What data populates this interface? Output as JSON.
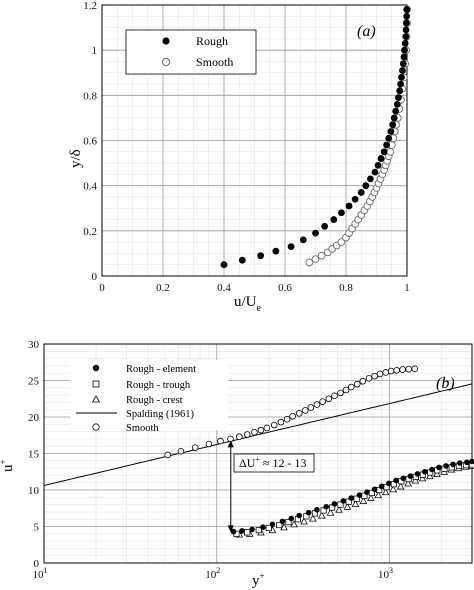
{
  "chart_data": [
    {
      "type": "scatter",
      "panel_label": "(a)",
      "xlabel_main": "u/U",
      "xlabel_sub": "e",
      "ylabel": "y/δ",
      "xlim": [
        0,
        1
      ],
      "ylim": [
        0,
        1.2
      ],
      "x_ticks": [
        "0",
        "0.2",
        "0.4",
        "0.6",
        "0.8",
        "1"
      ],
      "y_ticks": [
        "0",
        "0.2",
        "0.4",
        "0.6",
        "0.8",
        "1",
        "1.2"
      ],
      "grid": true,
      "legend_position": "top-left",
      "series": [
        {
          "name": "Rough",
          "marker": "filled-circle",
          "points": [
            [
              0.4,
              0.05
            ],
            [
              0.46,
              0.07
            ],
            [
              0.52,
              0.09
            ],
            [
              0.57,
              0.11
            ],
            [
              0.62,
              0.13
            ],
            [
              0.66,
              0.16
            ],
            [
              0.7,
              0.19
            ],
            [
              0.73,
              0.22
            ],
            [
              0.76,
              0.25
            ],
            [
              0.785,
              0.28
            ],
            [
              0.81,
              0.31
            ],
            [
              0.83,
              0.34
            ],
            [
              0.85,
              0.37
            ],
            [
              0.865,
              0.4
            ],
            [
              0.88,
              0.43
            ],
            [
              0.895,
              0.46
            ],
            [
              0.905,
              0.49
            ],
            [
              0.915,
              0.52
            ],
            [
              0.925,
              0.55
            ],
            [
              0.933,
              0.58
            ],
            [
              0.94,
              0.61
            ],
            [
              0.947,
              0.64
            ],
            [
              0.953,
              0.67
            ],
            [
              0.958,
              0.7
            ],
            [
              0.963,
              0.73
            ],
            [
              0.968,
              0.76
            ],
            [
              0.972,
              0.79
            ],
            [
              0.976,
              0.82
            ],
            [
              0.979,
              0.85
            ],
            [
              0.982,
              0.88
            ],
            [
              0.985,
              0.91
            ],
            [
              0.988,
              0.94
            ],
            [
              0.99,
              0.97
            ],
            [
              0.992,
              1.0
            ],
            [
              0.994,
              1.03
            ],
            [
              0.996,
              1.06
            ],
            [
              0.997,
              1.09
            ],
            [
              0.998,
              1.12
            ],
            [
              0.999,
              1.15
            ],
            [
              1.0,
              1.18
            ]
          ]
        },
        {
          "name": "Smooth",
          "marker": "open-circle",
          "points": [
            [
              0.68,
              0.06
            ],
            [
              0.7,
              0.075
            ],
            [
              0.72,
              0.09
            ],
            [
              0.74,
              0.105
            ],
            [
              0.755,
              0.12
            ],
            [
              0.77,
              0.135
            ],
            [
              0.785,
              0.15
            ],
            [
              0.8,
              0.17
            ],
            [
              0.81,
              0.19
            ],
            [
              0.82,
              0.21
            ],
            [
              0.83,
              0.23
            ],
            [
              0.84,
              0.25
            ],
            [
              0.85,
              0.27
            ],
            [
              0.86,
              0.29
            ],
            [
              0.87,
              0.31
            ],
            [
              0.878,
              0.33
            ],
            [
              0.886,
              0.35
            ],
            [
              0.893,
              0.37
            ],
            [
              0.9,
              0.39
            ],
            [
              0.907,
              0.41
            ],
            [
              0.913,
              0.43
            ],
            [
              0.919,
              0.45
            ],
            [
              0.925,
              0.47
            ],
            [
              0.93,
              0.49
            ],
            [
              0.935,
              0.51
            ],
            [
              0.94,
              0.53
            ],
            [
              0.945,
              0.55
            ],
            [
              0.95,
              0.58
            ],
            [
              0.955,
              0.61
            ],
            [
              0.96,
              0.64
            ],
            [
              0.965,
              0.67
            ],
            [
              0.97,
              0.7
            ],
            [
              0.975,
              0.74
            ],
            [
              0.98,
              0.78
            ],
            [
              0.985,
              0.83
            ],
            [
              0.99,
              0.88
            ],
            [
              0.994,
              0.94
            ],
            [
              0.997,
              1.0
            ],
            [
              0.999,
              1.06
            ],
            [
              1.0,
              1.12
            ],
            [
              1.0,
              1.18
            ]
          ]
        }
      ]
    },
    {
      "type": "scatter",
      "panel_label": "(b)",
      "xlabel_main": "y",
      "xlabel_sup": "+",
      "ylabel_main": "u",
      "ylabel_sup": "+",
      "xscale": "log",
      "xlim": [
        10,
        3000
      ],
      "ylim": [
        0,
        30
      ],
      "x_ticks": [
        {
          "base": "10",
          "exp": "1",
          "value": 10
        },
        {
          "base": "10",
          "exp": "2",
          "value": 100
        },
        {
          "base": "10",
          "exp": "3",
          "value": 1000
        }
      ],
      "y_ticks": [
        "0",
        "5",
        "10",
        "15",
        "20",
        "25",
        "30"
      ],
      "grid": true,
      "legend_position": "top-left",
      "annotation": {
        "text": "ΔU",
        "sup": "+",
        "rest": " ≈ 12 - 13",
        "x": 100,
        "y_from": 4.2,
        "y_to": 16.8
      },
      "series": [
        {
          "name": "Rough - element",
          "marker": "filled-circle",
          "points": [
            [
              125,
              4.3
            ],
            [
              140,
              4.4
            ],
            [
              160,
              4.6
            ],
            [
              185,
              4.9
            ],
            [
              210,
              5.3
            ],
            [
              240,
              5.7
            ],
            [
              270,
              6.1
            ],
            [
              300,
              6.5
            ],
            [
              340,
              6.9
            ],
            [
              380,
              7.3
            ],
            [
              430,
              7.7
            ],
            [
              480,
              8.1
            ],
            [
              540,
              8.5
            ],
            [
              600,
              8.9
            ],
            [
              670,
              9.3
            ],
            [
              740,
              9.7
            ],
            [
              820,
              10.1
            ],
            [
              900,
              10.5
            ],
            [
              990,
              10.9
            ],
            [
              1090,
              11.3
            ],
            [
              1200,
              11.6
            ],
            [
              1320,
              11.9
            ],
            [
              1450,
              12.2
            ],
            [
              1600,
              12.5
            ],
            [
              1760,
              12.8
            ],
            [
              1930,
              13.1
            ],
            [
              2120,
              13.3
            ],
            [
              2330,
              13.5
            ],
            [
              2550,
              13.7
            ],
            [
              2800,
              13.8
            ],
            [
              3000,
              13.9
            ]
          ]
        },
        {
          "name": "Rough - trough",
          "marker": "open-square",
          "points": [
            [
              130,
              4.0
            ],
            [
              150,
              4.2
            ],
            [
              175,
              4.5
            ],
            [
              200,
              4.8
            ],
            [
              230,
              5.2
            ],
            [
              260,
              5.6
            ],
            [
              295,
              6.0
            ],
            [
              330,
              6.4
            ],
            [
              370,
              6.8
            ],
            [
              415,
              7.2
            ],
            [
              465,
              7.6
            ],
            [
              520,
              8.0
            ],
            [
              580,
              8.4
            ],
            [
              645,
              8.8
            ],
            [
              715,
              9.2
            ],
            [
              790,
              9.6
            ],
            [
              870,
              10.0
            ],
            [
              960,
              10.4
            ],
            [
              1060,
              10.8
            ],
            [
              1170,
              11.2
            ],
            [
              1290,
              11.5
            ],
            [
              1420,
              11.8
            ],
            [
              1560,
              12.1
            ],
            [
              1720,
              12.4
            ],
            [
              1890,
              12.7
            ],
            [
              2080,
              12.9
            ],
            [
              2290,
              13.1
            ],
            [
              2520,
              13.3
            ],
            [
              2770,
              13.4
            ],
            [
              3000,
              13.5
            ]
          ]
        },
        {
          "name": "Rough - crest",
          "marker": "open-triangle",
          "points": [
            [
              135,
              3.9
            ],
            [
              155,
              4.0
            ],
            [
              180,
              4.2
            ],
            [
              210,
              4.5
            ],
            [
              245,
              4.9
            ],
            [
              280,
              5.3
            ],
            [
              320,
              5.7
            ],
            [
              360,
              6.1
            ],
            [
              405,
              6.5
            ],
            [
              455,
              6.9
            ],
            [
              510,
              7.3
            ],
            [
              570,
              7.7
            ],
            [
              635,
              8.1
            ],
            [
              705,
              8.5
            ],
            [
              780,
              8.9
            ],
            [
              860,
              9.3
            ],
            [
              950,
              9.7
            ],
            [
              1050,
              10.1
            ],
            [
              1160,
              10.5
            ],
            [
              1280,
              10.9
            ],
            [
              1410,
              11.3
            ],
            [
              1550,
              11.6
            ],
            [
              1710,
              11.9
            ],
            [
              1880,
              12.2
            ],
            [
              2070,
              12.5
            ],
            [
              2280,
              12.8
            ],
            [
              2510,
              13.0
            ],
            [
              2760,
              13.2
            ],
            [
              3000,
              13.3
            ]
          ]
        },
        {
          "name": "Spalding (1961)",
          "marker": "line",
          "curve": "log-law",
          "kappa": 0.41,
          "B": 5.0
        },
        {
          "name": "Smooth",
          "marker": "open-circle",
          "points": [
            [
              52,
              14.8
            ],
            [
              62,
              15.3
            ],
            [
              75,
              15.8
            ],
            [
              90,
              16.3
            ],
            [
              105,
              16.7
            ],
            [
              120,
              17.0
            ],
            [
              135,
              17.3
            ],
            [
              150,
              17.6
            ],
            [
              165,
              17.9
            ],
            [
              180,
              18.2
            ],
            [
              195,
              18.5
            ],
            [
              215,
              18.9
            ],
            [
              235,
              19.3
            ],
            [
              255,
              19.7
            ],
            [
              275,
              20.1
            ],
            [
              300,
              20.5
            ],
            [
              325,
              20.9
            ],
            [
              350,
              21.3
            ],
            [
              380,
              21.7
            ],
            [
              410,
              22.1
            ],
            [
              445,
              22.5
            ],
            [
              480,
              22.9
            ],
            [
              520,
              23.3
            ],
            [
              560,
              23.7
            ],
            [
              600,
              24.1
            ],
            [
              650,
              24.5
            ],
            [
              700,
              24.9
            ],
            [
              760,
              25.3
            ],
            [
              820,
              25.6
            ],
            [
              880,
              25.9
            ],
            [
              950,
              26.1
            ],
            [
              1020,
              26.3
            ],
            [
              1100,
              26.4
            ],
            [
              1190,
              26.5
            ],
            [
              1290,
              26.55
            ],
            [
              1400,
              26.6
            ]
          ]
        }
      ]
    }
  ]
}
